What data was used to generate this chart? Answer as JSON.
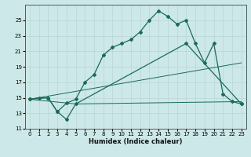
{
  "xlabel": "Humidex (Indice chaleur)",
  "bg_color": "#cce8e8",
  "line_color": "#1a6b5a",
  "grid_color": "#b8d4d4",
  "xlim": [
    -0.5,
    23.5
  ],
  "ylim": [
    11,
    27
  ],
  "xticks": [
    0,
    1,
    2,
    3,
    4,
    5,
    6,
    7,
    8,
    9,
    10,
    11,
    12,
    13,
    14,
    15,
    16,
    17,
    18,
    19,
    20,
    21,
    22,
    23
  ],
  "yticks": [
    11,
    13,
    15,
    17,
    19,
    21,
    23,
    25
  ],
  "line1_x": [
    0,
    1,
    2,
    3,
    4,
    5,
    6,
    7,
    8,
    9,
    10,
    11,
    12,
    13,
    14,
    15,
    16,
    17,
    18,
    19,
    20,
    21,
    22,
    23
  ],
  "line1_y": [
    14.8,
    15.0,
    15.0,
    13.2,
    14.3,
    14.8,
    17.0,
    18.0,
    20.5,
    21.5,
    22.0,
    22.5,
    23.5,
    25.0,
    26.2,
    25.5,
    24.5,
    25.0,
    22.0,
    19.5,
    22.0,
    15.5,
    14.5,
    14.2
  ],
  "line2_x": [
    0,
    2,
    3,
    4,
    5,
    17,
    23
  ],
  "line2_y": [
    14.8,
    15.0,
    13.2,
    12.2,
    14.2,
    22.0,
    14.2
  ],
  "line3_x": [
    0,
    5,
    23
  ],
  "line3_y": [
    14.8,
    14.2,
    14.5
  ],
  "line4_x": [
    0,
    23
  ],
  "line4_y": [
    14.8,
    19.5
  ]
}
